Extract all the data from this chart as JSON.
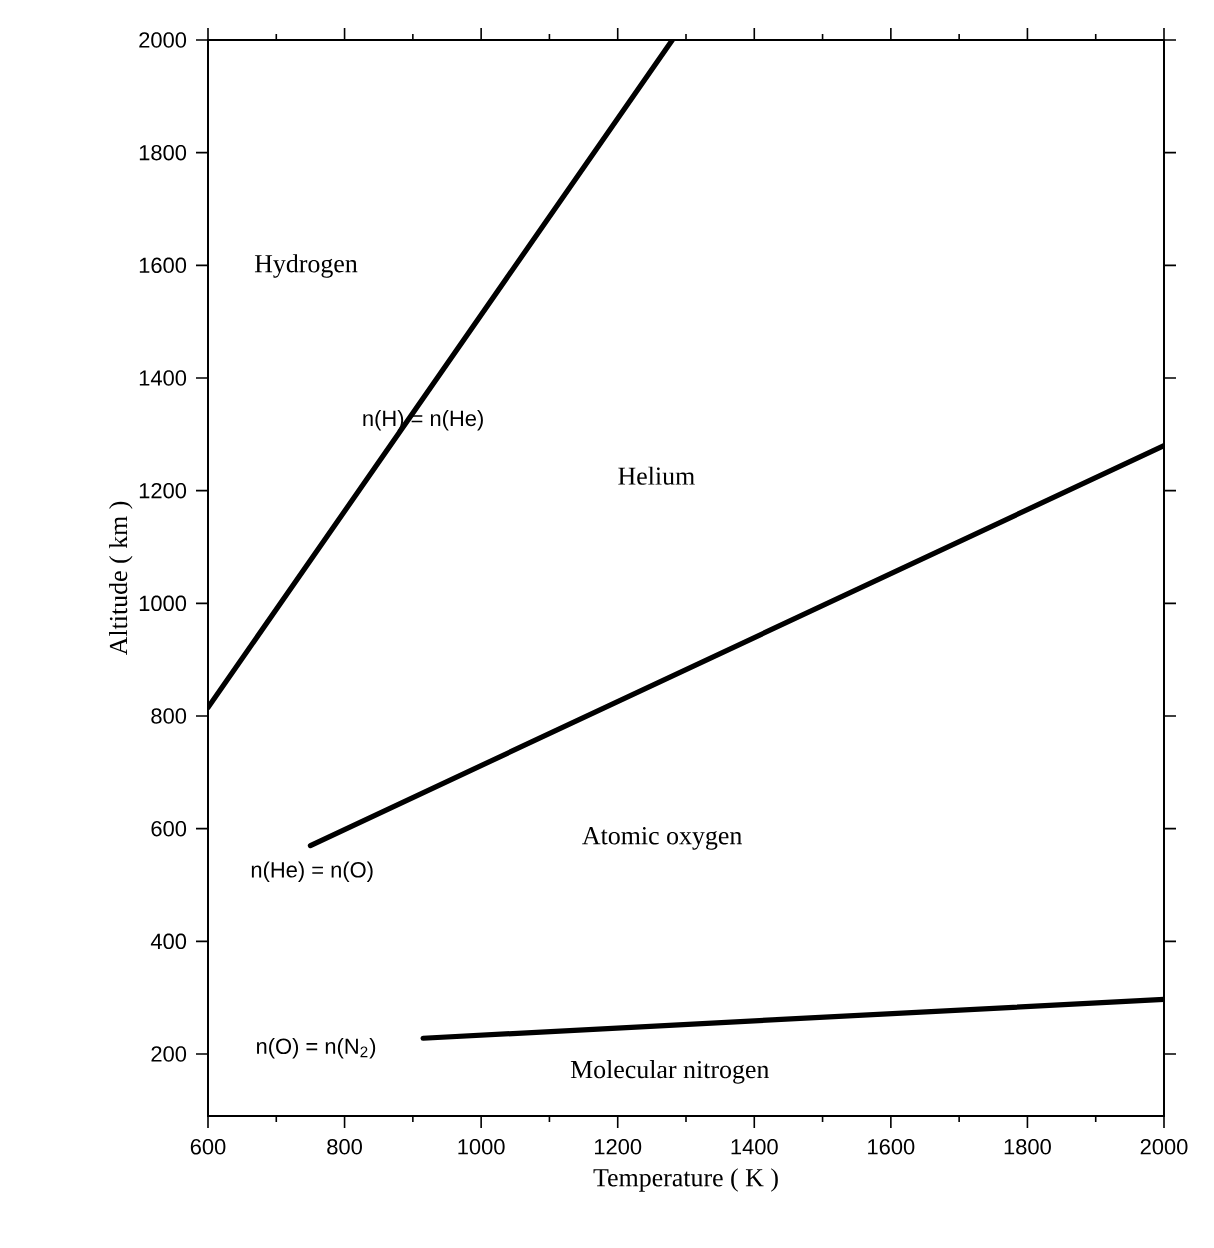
{
  "chart_data": {
    "type": "line",
    "xlabel": "Temperature ( K )",
    "ylabel": "Altitude ( km )",
    "xlim": [
      600,
      2000
    ],
    "ylim": [
      90,
      2000
    ],
    "xticks": [
      600,
      800,
      1000,
      1200,
      1400,
      1600,
      1800,
      2000
    ],
    "yticks": [
      200,
      400,
      600,
      800,
      1000,
      1200,
      1400,
      1600,
      1800,
      2000
    ],
    "marker": "none",
    "line_style": "solid",
    "grid": false,
    "series": [
      {
        "color": "#000000",
        "x": [
          600,
          1280
        ],
        "values": [
          815,
          2000
        ]
      },
      {
        "color": "#000000",
        "x": [
          750,
          2000
        ],
        "values": [
          570,
          1280
        ]
      },
      {
        "color": "#000000",
        "x": [
          915,
          2000
        ],
        "values": [
          228,
          297
        ]
      }
    ],
    "annotations": [
      "Hydrogen",
      "Helium",
      "Atomic  oxygen",
      "Molecular  nitrogen",
      {
        "text": "n(H) = n(He)",
        "x": 915,
        "y": 1325
      },
      "n(He) = n(O)",
      "n(O)  =  n(N$_{2}$)"
    ]
  }
}
